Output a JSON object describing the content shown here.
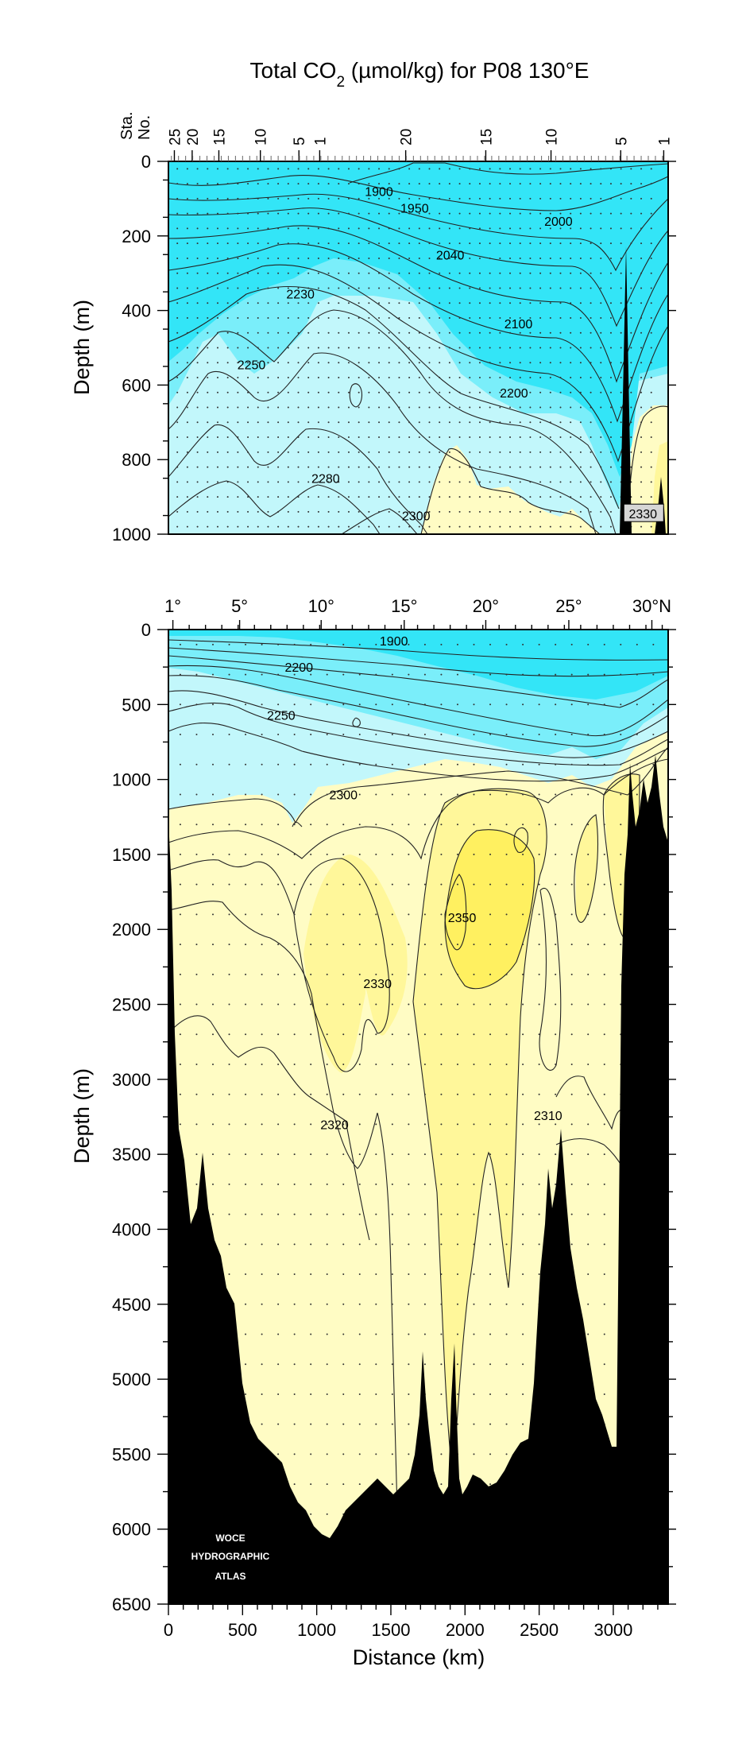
{
  "title": {
    "prefix": "Total CO",
    "subscript": "2",
    "suffix": " (µmol/kg) for P08 130°E"
  },
  "colors": {
    "cyan_deep": "#33e5f7",
    "cyan_mid": "#7aeefa",
    "cyan_light": "#c2f7fb",
    "yellow_pale": "#fffcc4",
    "yellow_mid": "#fff79a",
    "yellow_deep": "#fff060",
    "bathymetry": "#000000",
    "contour_line": "#222222"
  },
  "logo_text": [
    "WOCE",
    "HYDROGRAPHIC",
    "ATLAS"
  ],
  "chart_data": [
    {
      "id": "upper",
      "type": "contour-section",
      "xlabel": "",
      "ylabel": "Depth (m)",
      "xlim": [
        0,
        3370
      ],
      "ylim": [
        1000,
        0
      ],
      "y_ticks": [
        0,
        200,
        400,
        600,
        800,
        1000
      ],
      "station_axis": {
        "label_lines": [
          "Sta.",
          "No."
        ],
        "labels": [
          {
            "text": "25",
            "km": 40
          },
          {
            "text": "20",
            "km": 160
          },
          {
            "text": "15",
            "km": 340
          },
          {
            "text": "10",
            "km": 620
          },
          {
            "text": "5",
            "km": 880
          },
          {
            "text": "1",
            "km": 1020
          },
          {
            "text": "20",
            "km": 1600
          },
          {
            "text": "15",
            "km": 2140
          },
          {
            "text": "10",
            "km": 2580
          },
          {
            "text": "5",
            "km": 3050
          },
          {
            "text": "1",
            "km": 3340
          }
        ]
      },
      "contour_labels": [
        {
          "text": "1900",
          "km": 1420,
          "depth": 80
        },
        {
          "text": "1950",
          "km": 1660,
          "depth": 125
        },
        {
          "text": "2000",
          "km": 2630,
          "depth": 160
        },
        {
          "text": "2040",
          "km": 1900,
          "depth": 250
        },
        {
          "text": "2230",
          "km": 890,
          "depth": 355
        },
        {
          "text": "2100",
          "km": 2360,
          "depth": 435
        },
        {
          "text": "2250",
          "km": 560,
          "depth": 545
        },
        {
          "text": "2200",
          "km": 2330,
          "depth": 620
        },
        {
          "text": "2280",
          "km": 1060,
          "depth": 850
        },
        {
          "text": "2300",
          "km": 1670,
          "depth": 950
        },
        {
          "text": "2330",
          "km": 3200,
          "depth": 945
        }
      ],
      "contour_levels": [
        1900,
        1950,
        2000,
        2040,
        2100,
        2200,
        2230,
        2250,
        2280,
        2300,
        2330
      ]
    },
    {
      "id": "lower",
      "type": "contour-section",
      "xlabel": "Distance (km)",
      "ylabel": "Depth (m)",
      "xlim": [
        0,
        3370
      ],
      "ylim": [
        6500,
        0
      ],
      "x_ticks": [
        0,
        500,
        1000,
        1500,
        2000,
        2500,
        3000
      ],
      "y_ticks": [
        0,
        500,
        1000,
        1500,
        2000,
        2500,
        3000,
        3500,
        4000,
        4500,
        5000,
        5500,
        6000,
        6500
      ],
      "latitude_axis": [
        {
          "text": "1°",
          "km": 30
        },
        {
          "text": "5°",
          "km": 480
        },
        {
          "text": "10°",
          "km": 1030
        },
        {
          "text": "15°",
          "km": 1590
        },
        {
          "text": "20°",
          "km": 2140
        },
        {
          "text": "25°",
          "km": 2700
        },
        {
          "text": "30°N",
          "km": 3260
        }
      ],
      "contour_labels": [
        {
          "text": "1900",
          "km": 1520,
          "depth": 75
        },
        {
          "text": "2200",
          "km": 880,
          "depth": 250
        },
        {
          "text": "2250",
          "km": 760,
          "depth": 570
        },
        {
          "text": "2300",
          "km": 1180,
          "depth": 1100
        },
        {
          "text": "2350",
          "km": 1980,
          "depth": 1920
        },
        {
          "text": "2330",
          "km": 1410,
          "depth": 2360
        },
        {
          "text": "2320",
          "km": 1120,
          "depth": 3300
        },
        {
          "text": "2310",
          "km": 2560,
          "depth": 3240
        }
      ],
      "contour_levels": [
        1900,
        2200,
        2250,
        2300,
        2310,
        2320,
        2330,
        2350
      ]
    }
  ]
}
